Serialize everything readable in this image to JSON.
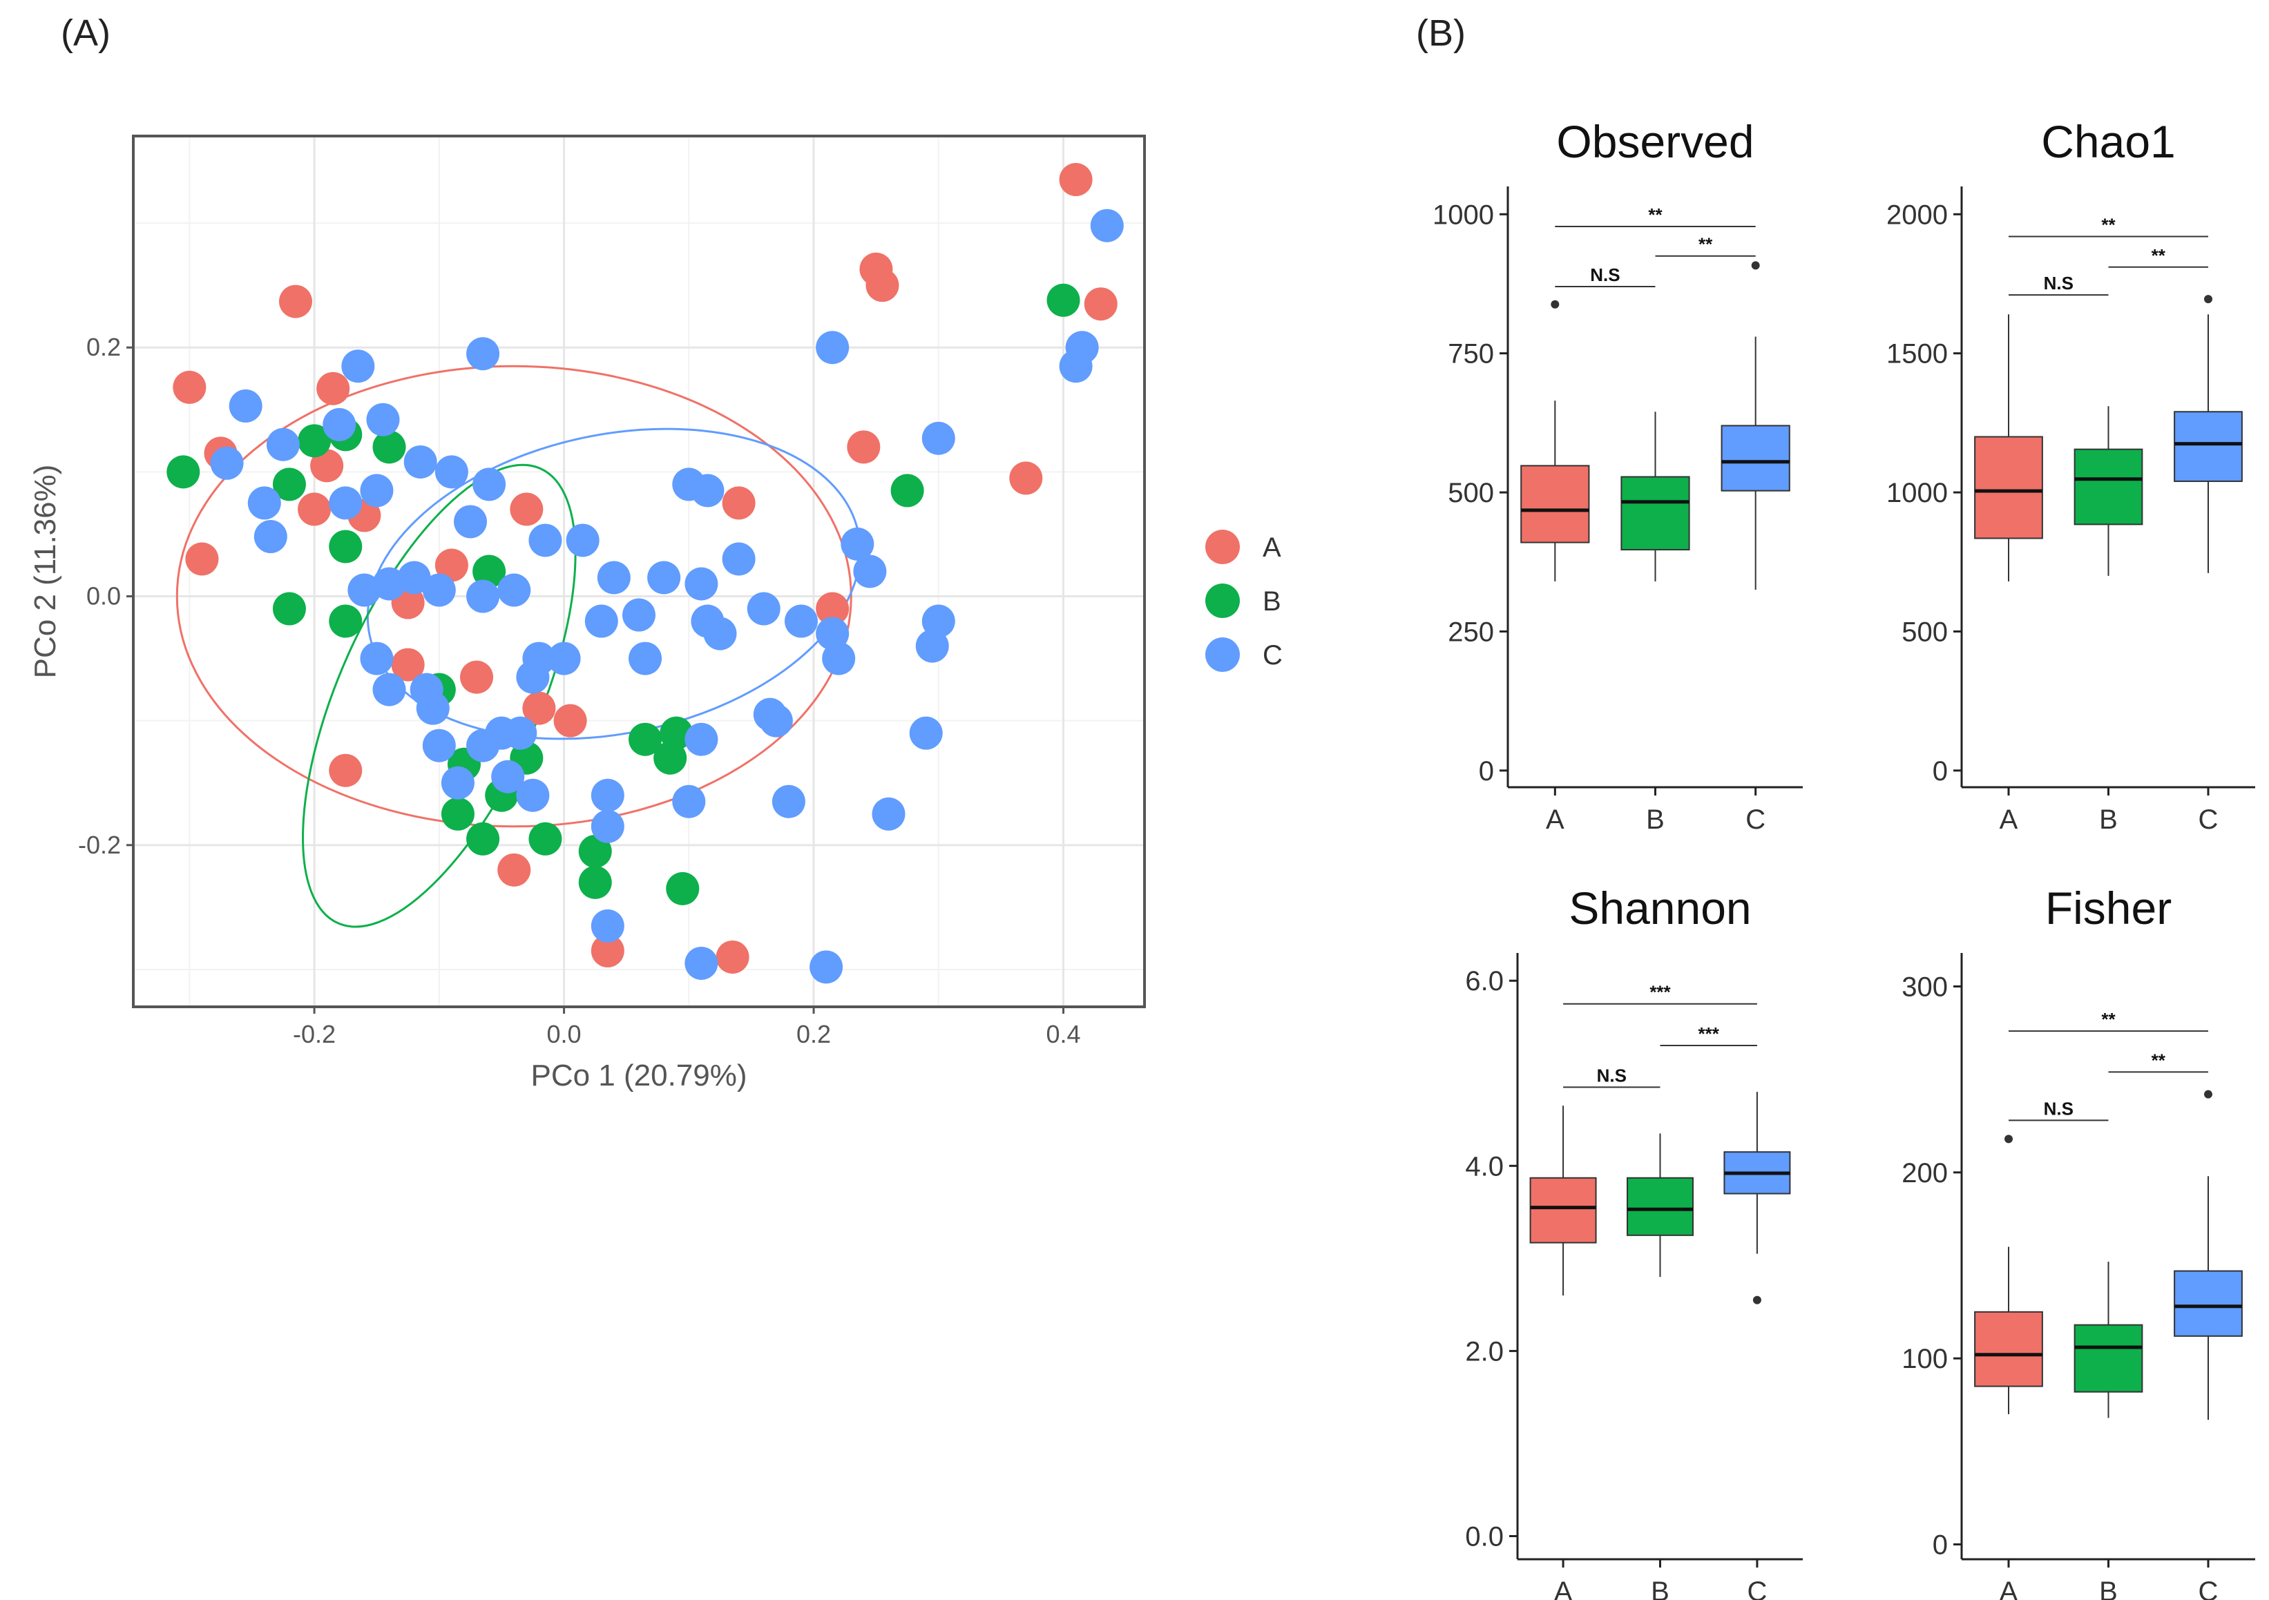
{
  "panel_labels": {
    "a": "(A)",
    "b": "(B)"
  },
  "colors": {
    "A": "#F07167",
    "B": "#0DB04B",
    "C": "#619CFF"
  },
  "chart_data": [
    {
      "type": "scatter",
      "panel": "(A)",
      "xlabel": "PCo 1 (20.79%)",
      "ylabel": "PCo 2 (11.36%)",
      "xlim": [
        -0.345,
        0.465
      ],
      "ylim": [
        -0.33,
        0.37
      ],
      "xticks": [
        -0.2,
        0.0,
        0.2,
        0.4
      ],
      "xtick_labels": [
        "-0.2",
        "0.0",
        "0.2",
        "0.4"
      ],
      "yticks": [
        -0.2,
        0.0,
        0.2
      ],
      "ytick_labels": [
        "-0.2",
        "0.0",
        "0.2"
      ],
      "grid": true,
      "legend": {
        "position": "right",
        "entries": [
          "A",
          "B",
          "C"
        ]
      },
      "ellipses": [
        {
          "group": "A",
          "cx": -0.04,
          "cy": 0.0,
          "rx": 0.27,
          "ry": 0.185,
          "angle": 0
        },
        {
          "group": "C",
          "cx": 0.04,
          "cy": 0.01,
          "rx": 0.2,
          "ry": 0.12,
          "angle": -12
        },
        {
          "group": "B",
          "cx": -0.1,
          "cy": -0.08,
          "rx": 0.08,
          "ry": 0.2,
          "angle": 24
        }
      ],
      "series": [
        {
          "name": "A",
          "points": [
            [
              0.41,
              0.335
            ],
            [
              0.25,
              0.263
            ],
            [
              0.255,
              0.25
            ],
            [
              0.43,
              0.235
            ],
            [
              -0.215,
              0.237
            ],
            [
              -0.3,
              0.168
            ],
            [
              -0.185,
              0.167
            ],
            [
              0.24,
              0.12
            ],
            [
              0.37,
              0.095
            ],
            [
              -0.275,
              0.115
            ],
            [
              -0.19,
              0.105
            ],
            [
              -0.03,
              0.07
            ],
            [
              0.14,
              0.075
            ],
            [
              -0.2,
              0.07
            ],
            [
              -0.16,
              0.065
            ],
            [
              -0.29,
              0.03
            ],
            [
              -0.09,
              0.025
            ],
            [
              -0.125,
              -0.005
            ],
            [
              0.215,
              -0.01
            ],
            [
              -0.125,
              -0.055
            ],
            [
              -0.07,
              -0.065
            ],
            [
              -0.02,
              -0.09
            ],
            [
              0.005,
              -0.1
            ],
            [
              -0.175,
              -0.14
            ],
            [
              -0.04,
              -0.22
            ],
            [
              0.035,
              -0.285
            ],
            [
              0.135,
              -0.29
            ]
          ]
        },
        {
          "name": "B",
          "points": [
            [
              0.4,
              0.238
            ],
            [
              -0.305,
              0.1
            ],
            [
              -0.2,
              0.125
            ],
            [
              -0.175,
              0.13
            ],
            [
              -0.14,
              0.12
            ],
            [
              -0.22,
              0.09
            ],
            [
              0.275,
              0.085
            ],
            [
              -0.175,
              0.04
            ],
            [
              -0.06,
              0.02
            ],
            [
              -0.22,
              -0.01
            ],
            [
              -0.175,
              -0.02
            ],
            [
              -0.1,
              -0.075
            ],
            [
              0.065,
              -0.115
            ],
            [
              0.09,
              -0.11
            ],
            [
              0.085,
              -0.13
            ],
            [
              -0.08,
              -0.135
            ],
            [
              -0.03,
              -0.13
            ],
            [
              -0.05,
              -0.16
            ],
            [
              -0.085,
              -0.175
            ],
            [
              -0.065,
              -0.195
            ],
            [
              -0.015,
              -0.195
            ],
            [
              0.025,
              -0.205
            ],
            [
              0.025,
              -0.23
            ],
            [
              0.095,
              -0.235
            ]
          ]
        },
        {
          "name": "C",
          "points": [
            [
              0.435,
              0.298
            ],
            [
              0.215,
              0.2
            ],
            [
              -0.165,
              0.185
            ],
            [
              -0.065,
              0.195
            ],
            [
              0.415,
              0.2
            ],
            [
              0.41,
              0.185
            ],
            [
              -0.255,
              0.153
            ],
            [
              -0.225,
              0.122
            ],
            [
              -0.18,
              0.138
            ],
            [
              -0.145,
              0.142
            ],
            [
              0.3,
              0.127
            ],
            [
              -0.27,
              0.107
            ],
            [
              -0.115,
              0.108
            ],
            [
              -0.09,
              0.1
            ],
            [
              -0.06,
              0.09
            ],
            [
              0.1,
              0.09
            ],
            [
              0.115,
              0.085
            ],
            [
              -0.15,
              0.085
            ],
            [
              -0.24,
              0.075
            ],
            [
              -0.175,
              0.075
            ],
            [
              -0.075,
              0.06
            ],
            [
              -0.235,
              0.048
            ],
            [
              -0.015,
              0.045
            ],
            [
              0.015,
              0.045
            ],
            [
              0.235,
              0.042
            ],
            [
              0.14,
              0.03
            ],
            [
              -0.04,
              0.005
            ],
            [
              0.04,
              0.015
            ],
            [
              0.08,
              0.015
            ],
            [
              0.11,
              0.01
            ],
            [
              0.245,
              0.02
            ],
            [
              -0.16,
              0.005
            ],
            [
              -0.14,
              0.01
            ],
            [
              -0.12,
              0.015
            ],
            [
              -0.1,
              0.005
            ],
            [
              -0.065,
              0.0
            ],
            [
              0.03,
              -0.02
            ],
            [
              0.06,
              -0.015
            ],
            [
              0.115,
              -0.02
            ],
            [
              0.16,
              -0.01
            ],
            [
              0.19,
              -0.02
            ],
            [
              0.125,
              -0.03
            ],
            [
              0.215,
              -0.03
            ],
            [
              0.3,
              -0.02
            ],
            [
              -0.15,
              -0.05
            ],
            [
              -0.02,
              -0.05
            ],
            [
              0.0,
              -0.05
            ],
            [
              0.065,
              -0.05
            ],
            [
              0.22,
              -0.05
            ],
            [
              0.295,
              -0.04
            ],
            [
              -0.14,
              -0.075
            ],
            [
              -0.11,
              -0.075
            ],
            [
              -0.025,
              -0.065
            ],
            [
              -0.105,
              -0.09
            ],
            [
              -0.1,
              -0.12
            ],
            [
              -0.065,
              -0.12
            ],
            [
              -0.05,
              -0.11
            ],
            [
              -0.035,
              -0.11
            ],
            [
              -0.085,
              -0.15
            ],
            [
              -0.045,
              -0.145
            ],
            [
              -0.025,
              -0.16
            ],
            [
              0.035,
              -0.16
            ],
            [
              0.11,
              -0.115
            ],
            [
              0.165,
              -0.095
            ],
            [
              0.17,
              -0.1
            ],
            [
              0.29,
              -0.11
            ],
            [
              0.035,
              -0.185
            ],
            [
              0.1,
              -0.165
            ],
            [
              0.18,
              -0.165
            ],
            [
              0.26,
              -0.175
            ],
            [
              0.035,
              -0.265
            ],
            [
              0.11,
              -0.295
            ],
            [
              0.21,
              -0.298
            ]
          ]
        }
      ]
    },
    {
      "type": "box",
      "panel": "(B)",
      "title": "Observed",
      "categories": [
        "A",
        "B",
        "C"
      ],
      "ylim": [
        -30,
        1050
      ],
      "yticks": [
        0,
        250,
        500,
        750,
        1000
      ],
      "ytick_labels": [
        "0",
        "250",
        "500",
        "750",
        "1000"
      ],
      "boxes": [
        {
          "group": "A",
          "min": 340,
          "q1": 410,
          "median": 468,
          "q3": 548,
          "max": 665,
          "outliers": [
            838
          ]
        },
        {
          "group": "B",
          "min": 340,
          "q1": 397,
          "median": 483,
          "q3": 528,
          "max": 645,
          "outliers": []
        },
        {
          "group": "C",
          "min": 325,
          "q1": 503,
          "median": 555,
          "q3": 620,
          "max": 780,
          "outliers": [
            908
          ]
        }
      ],
      "significance": [
        {
          "pair": [
            "A",
            "B"
          ],
          "label": "N.S",
          "y": 870
        },
        {
          "pair": [
            "B",
            "C"
          ],
          "label": "**",
          "y": 925
        },
        {
          "pair": [
            "A",
            "C"
          ],
          "label": "**",
          "y": 978
        }
      ]
    },
    {
      "type": "box",
      "panel": "(B)",
      "title": "Chao1",
      "categories": [
        "A",
        "B",
        "C"
      ],
      "ylim": [
        -60,
        2100
      ],
      "yticks": [
        0,
        500,
        1000,
        1500,
        2000
      ],
      "ytick_labels": [
        "0",
        "500",
        "1000",
        "1500",
        "2000"
      ],
      "boxes": [
        {
          "group": "A",
          "min": 680,
          "q1": 835,
          "median": 1005,
          "q3": 1200,
          "max": 1640,
          "outliers": []
        },
        {
          "group": "B",
          "min": 700,
          "q1": 885,
          "median": 1048,
          "q3": 1155,
          "max": 1310,
          "outliers": []
        },
        {
          "group": "C",
          "min": 710,
          "q1": 1040,
          "median": 1175,
          "q3": 1290,
          "max": 1640,
          "outliers": [
            1695
          ]
        }
      ],
      "significance": [
        {
          "pair": [
            "A",
            "B"
          ],
          "label": "N.S",
          "y": 1710
        },
        {
          "pair": [
            "B",
            "C"
          ],
          "label": "**",
          "y": 1810
        },
        {
          "pair": [
            "A",
            "C"
          ],
          "label": "**",
          "y": 1920
        }
      ]
    },
    {
      "type": "box",
      "panel": "(B)",
      "title": "Shannon",
      "categories": [
        "A",
        "B",
        "C"
      ],
      "ylim": [
        -0.25,
        6.3
      ],
      "yticks": [
        0.0,
        2.0,
        4.0,
        6.0
      ],
      "ytick_labels": [
        "0.0",
        "2.0",
        "4.0",
        "6.0"
      ],
      "boxes": [
        {
          "group": "A",
          "min": 2.6,
          "q1": 3.17,
          "median": 3.55,
          "q3": 3.87,
          "max": 4.65,
          "outliers": []
        },
        {
          "group": "B",
          "min": 2.8,
          "q1": 3.25,
          "median": 3.53,
          "q3": 3.87,
          "max": 4.35,
          "outliers": []
        },
        {
          "group": "C",
          "min": 3.05,
          "q1": 3.7,
          "median": 3.92,
          "q3": 4.15,
          "max": 4.8,
          "outliers": [
            2.55
          ]
        }
      ],
      "significance": [
        {
          "pair": [
            "A",
            "B"
          ],
          "label": "N.S",
          "y": 4.85
        },
        {
          "pair": [
            "B",
            "C"
          ],
          "label": "***",
          "y": 5.3
        },
        {
          "pair": [
            "A",
            "C"
          ],
          "label": "***",
          "y": 5.75
        }
      ]
    },
    {
      "type": "box",
      "panel": "(B)",
      "title": "Fisher",
      "categories": [
        "A",
        "B",
        "C"
      ],
      "ylim": [
        -8,
        318
      ],
      "yticks": [
        0,
        100,
        200,
        300
      ],
      "ytick_labels": [
        "0",
        "100",
        "200",
        "300"
      ],
      "boxes": [
        {
          "group": "A",
          "min": 70,
          "q1": 85,
          "median": 102,
          "q3": 125,
          "max": 160,
          "outliers": [
            218
          ]
        },
        {
          "group": "B",
          "min": 68,
          "q1": 82,
          "median": 106,
          "q3": 118,
          "max": 152,
          "outliers": []
        },
        {
          "group": "C",
          "min": 67,
          "q1": 112,
          "median": 128,
          "q3": 147,
          "max": 198,
          "outliers": [
            242
          ]
        }
      ],
      "significance": [
        {
          "pair": [
            "A",
            "B"
          ],
          "label": "N.S",
          "y": 228
        },
        {
          "pair": [
            "B",
            "C"
          ],
          "label": "**",
          "y": 254
        },
        {
          "pair": [
            "A",
            "C"
          ],
          "label": "**",
          "y": 276
        }
      ]
    }
  ]
}
